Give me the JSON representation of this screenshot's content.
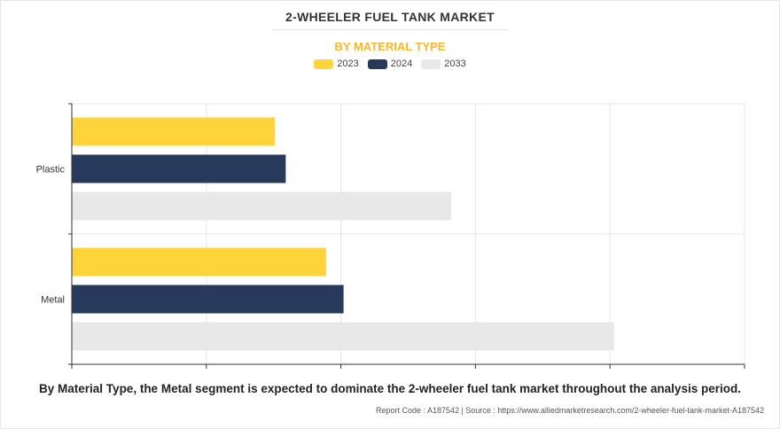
{
  "header": {
    "title": "2-WHEELER FUEL TANK MARKET",
    "subtitle": "BY MATERIAL TYPE"
  },
  "chart_data": {
    "type": "bar",
    "orientation": "horizontal",
    "categories": [
      "Plastic",
      "Metal"
    ],
    "series": [
      {
        "name": "2023",
        "color": "#ffd43b",
        "values": [
          1.51,
          1.89
        ]
      },
      {
        "name": "2024",
        "color": "#283a5b",
        "values": [
          1.59,
          2.02
        ]
      },
      {
        "name": "2033",
        "color": "#e8e8e8",
        "values": [
          2.82,
          4.03
        ]
      }
    ],
    "xlim": [
      0,
      5
    ],
    "grid": true,
    "legend": "top-center",
    "xlabel": "",
    "ylabel": ""
  },
  "footer": {
    "caption": "By Material Type, the Metal segment is expected to dominate the 2-wheeler fuel tank market throughout the analysis period.",
    "source": "Report Code : A187542  |  Source : https://www.alliedmarketresearch.com/2-wheeler-fuel-tank-market-A187542"
  }
}
